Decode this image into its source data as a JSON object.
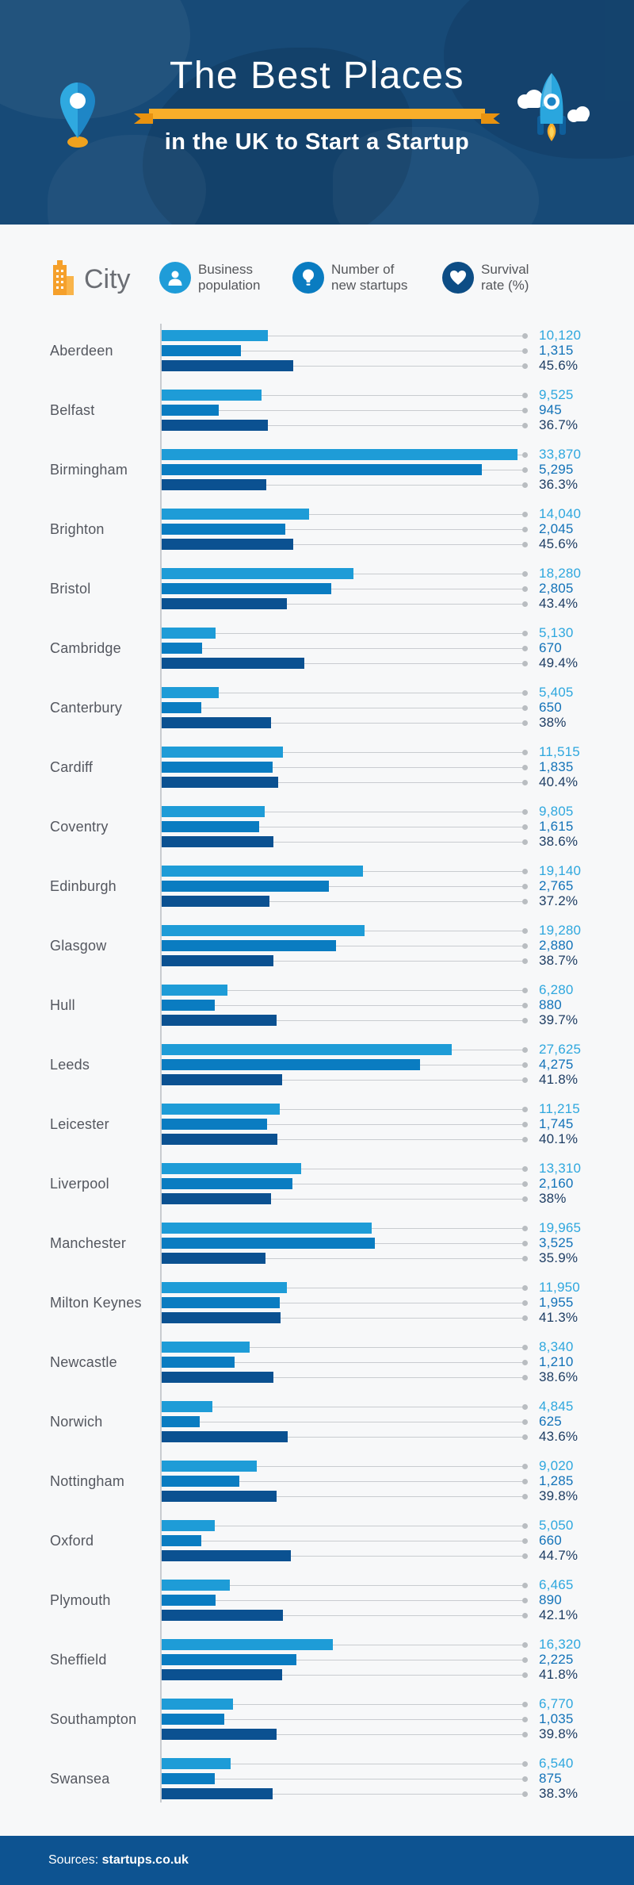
{
  "header": {
    "title": "The Best Places",
    "subtitle": "in the UK to Start a Startup",
    "left_icon": "map-pin-icon",
    "right_icon": "rocket-icon",
    "background_color": "#174a77",
    "ribbon_color": "#f9ae2a"
  },
  "legend": {
    "city_label": "City",
    "city_icon": "building-icon",
    "items": [
      {
        "icon": "person-icon",
        "label_line1": "Business",
        "label_line2": "population",
        "circle_color": "#1f9cd8"
      },
      {
        "icon": "lightbulb-icon",
        "label_line1": "Number of",
        "label_line2": "new startups",
        "circle_color": "#0a7cc1"
      },
      {
        "icon": "heart-icon",
        "label_line1": "Survival",
        "label_line2": "rate (%)",
        "circle_color": "#0d4d85"
      }
    ]
  },
  "chart_data": {
    "type": "bar",
    "orientation": "horizontal",
    "title": "The Best Places in the UK to Start a Startup",
    "series": [
      {
        "name": "Business population",
        "bar_color": "#1e9cd7",
        "value_color": "#2ea7de",
        "max_value": 33870
      },
      {
        "name": "Number of new startups",
        "bar_color": "#0a7cc1",
        "value_color": "#1272b8",
        "max_value": 5295
      },
      {
        "name": "Survival rate (%)",
        "bar_color": "#0b5191",
        "value_color": "#1e3d63",
        "max_value": 49.4
      }
    ],
    "cities": [
      {
        "name": "Aberdeen",
        "values": [
          10120,
          1315,
          45.6
        ],
        "labels": [
          "10,120",
          "1,315",
          "45.6%"
        ]
      },
      {
        "name": "Belfast",
        "values": [
          9525,
          945,
          36.7
        ],
        "labels": [
          "9,525",
          "945",
          "36.7%"
        ]
      },
      {
        "name": "Birmingham",
        "values": [
          33870,
          5295,
          36.3
        ],
        "labels": [
          "33,870",
          "5,295",
          "36.3%"
        ]
      },
      {
        "name": "Brighton",
        "values": [
          14040,
          2045,
          45.6
        ],
        "labels": [
          "14,040",
          "2,045",
          "45.6%"
        ]
      },
      {
        "name": "Bristol",
        "values": [
          18280,
          2805,
          43.4
        ],
        "labels": [
          "18,280",
          "2,805",
          "43.4%"
        ]
      },
      {
        "name": "Cambridge",
        "values": [
          5130,
          670,
          49.4
        ],
        "labels": [
          "5,130",
          "670",
          "49.4%"
        ]
      },
      {
        "name": "Canterbury",
        "values": [
          5405,
          650,
          38.0
        ],
        "labels": [
          "5,405",
          "650",
          "38%"
        ]
      },
      {
        "name": "Cardiff",
        "values": [
          11515,
          1835,
          40.4
        ],
        "labels": [
          "11,515",
          "1,835",
          "40.4%"
        ]
      },
      {
        "name": "Coventry",
        "values": [
          9805,
          1615,
          38.6
        ],
        "labels": [
          "9,805",
          "1,615",
          "38.6%"
        ]
      },
      {
        "name": "Edinburgh",
        "values": [
          19140,
          2765,
          37.2
        ],
        "labels": [
          "19,140",
          "2,765",
          "37.2%"
        ]
      },
      {
        "name": "Glasgow",
        "values": [
          19280,
          2880,
          38.7
        ],
        "labels": [
          "19,280",
          "2,880",
          "38.7%"
        ]
      },
      {
        "name": "Hull",
        "values": [
          6280,
          880,
          39.7
        ],
        "labels": [
          "6,280",
          "880",
          "39.7%"
        ]
      },
      {
        "name": "Leeds",
        "values": [
          27625,
          4275,
          41.8
        ],
        "labels": [
          "27,625",
          "4,275",
          "41.8%"
        ]
      },
      {
        "name": "Leicester",
        "values": [
          11215,
          1745,
          40.1
        ],
        "labels": [
          "11,215",
          "1,745",
          "40.1%"
        ]
      },
      {
        "name": "Liverpool",
        "values": [
          13310,
          2160,
          38.0
        ],
        "labels": [
          "13,310",
          "2,160",
          "38%"
        ]
      },
      {
        "name": "Manchester",
        "values": [
          19965,
          3525,
          35.9
        ],
        "labels": [
          "19,965",
          "3,525",
          "35.9%"
        ]
      },
      {
        "name": "Milton Keynes",
        "values": [
          11950,
          1955,
          41.3
        ],
        "labels": [
          "11,950",
          "1,955",
          "41.3%"
        ]
      },
      {
        "name": "Newcastle",
        "values": [
          8340,
          1210,
          38.6
        ],
        "labels": [
          "8,340",
          "1,210",
          "38.6%"
        ]
      },
      {
        "name": "Norwich",
        "values": [
          4845,
          625,
          43.6
        ],
        "labels": [
          "4,845",
          "625",
          "43.6%"
        ]
      },
      {
        "name": "Nottingham",
        "values": [
          9020,
          1285,
          39.8
        ],
        "labels": [
          "9,020",
          "1,285",
          "39.8%"
        ]
      },
      {
        "name": "Oxford",
        "values": [
          5050,
          660,
          44.7
        ],
        "labels": [
          "5,050",
          "660",
          "44.7%"
        ]
      },
      {
        "name": "Plymouth",
        "values": [
          6465,
          890,
          42.1
        ],
        "labels": [
          "6,465",
          "890",
          "42.1%"
        ]
      },
      {
        "name": "Sheffield",
        "values": [
          16320,
          2225,
          41.8
        ],
        "labels": [
          "16,320",
          "2,225",
          "41.8%"
        ]
      },
      {
        "name": "Southampton",
        "values": [
          6770,
          1035,
          39.8
        ],
        "labels": [
          "6,770",
          "1,035",
          "39.8%"
        ]
      },
      {
        "name": "Swansea",
        "values": [
          6540,
          875,
          38.3
        ],
        "labels": [
          "6,540",
          "875",
          "38.3%"
        ]
      }
    ]
  },
  "footer": {
    "sources_prefix": "Sources:",
    "source_name": "startups.co.uk",
    "background_color": "#0d5391"
  }
}
